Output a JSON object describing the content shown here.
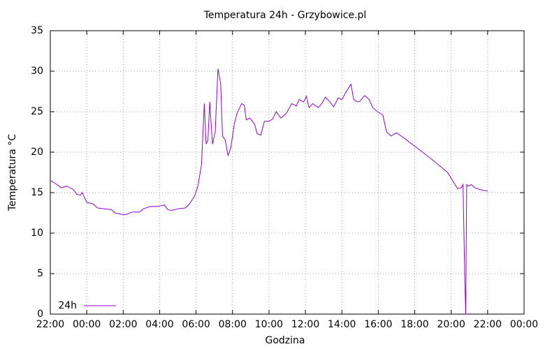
{
  "chart_data": {
    "type": "line",
    "title": "Temperatura 24h - Grzybowice.pl",
    "xlabel": "Godzina",
    "ylabel": "Temperatura  °C",
    "legend": "bottom-left",
    "grid": true,
    "xlim": [
      0,
      26
    ],
    "ylim": [
      0,
      35
    ],
    "yticks": [
      0,
      5,
      10,
      15,
      20,
      25,
      30,
      35
    ],
    "xticks": [
      {
        "value": 0,
        "label": "22:00"
      },
      {
        "value": 2,
        "label": "00:00"
      },
      {
        "value": 4,
        "label": "02:00"
      },
      {
        "value": 6,
        "label": "04:00"
      },
      {
        "value": 8,
        "label": "06:00"
      },
      {
        "value": 10,
        "label": "08:00"
      },
      {
        "value": 12,
        "label": "10:00"
      },
      {
        "value": 14,
        "label": "12:00"
      },
      {
        "value": 16,
        "label": "14:00"
      },
      {
        "value": 18,
        "label": "16:00"
      },
      {
        "value": 20,
        "label": "18:00"
      },
      {
        "value": 22,
        "label": "20:00"
      },
      {
        "value": 24,
        "label": "22:00"
      },
      {
        "value": 26,
        "label": "00:00"
      }
    ],
    "x": [
      0,
      0.3,
      0.6,
      0.9,
      1.25,
      1.45,
      1.65,
      1.75,
      1.85,
      2.0,
      2.35,
      2.6,
      3.0,
      3.35,
      3.55,
      3.95,
      4.15,
      4.5,
      4.9,
      5.1,
      5.5,
      5.85,
      6.15,
      6.25,
      6.45,
      6.65,
      7.0,
      7.4,
      7.6,
      7.9,
      8.1,
      8.3,
      8.45,
      8.55,
      8.65,
      8.75,
      8.9,
      9.05,
      9.2,
      9.35,
      9.45,
      9.6,
      9.75,
      9.9,
      10.1,
      10.25,
      10.5,
      10.65,
      10.75,
      10.95,
      11.2,
      11.35,
      11.55,
      11.75,
      12.0,
      12.2,
      12.4,
      12.65,
      12.95,
      13.25,
      13.5,
      13.65,
      13.9,
      14.05,
      14.2,
      14.4,
      14.7,
      14.9,
      15.1,
      15.35,
      15.55,
      15.8,
      16.0,
      16.25,
      16.5,
      16.65,
      16.85,
      17.0,
      17.25,
      17.5,
      17.7,
      17.95,
      18.25,
      18.45,
      18.7,
      19.0,
      19.5,
      20.25,
      21.0,
      21.8,
      22.35,
      22.55,
      22.65,
      22.75,
      22.8,
      22.85,
      22.95,
      23.1,
      23.3,
      23.7,
      24.0
    ],
    "series": [
      {
        "name": "24h",
        "color": "#9400d3",
        "values": [
          16.5,
          16.1,
          15.6,
          15.8,
          15.4,
          14.8,
          14.7,
          15.0,
          14.5,
          13.8,
          13.6,
          13.1,
          13.0,
          12.9,
          12.5,
          12.3,
          12.3,
          12.6,
          12.6,
          13.0,
          13.3,
          13.3,
          13.4,
          13.5,
          12.9,
          12.8,
          13.0,
          13.1,
          13.5,
          14.5,
          15.8,
          18.5,
          26.0,
          21.0,
          21.5,
          26.2,
          21.0,
          22.5,
          30.3,
          28.5,
          22.0,
          21.5,
          19.6,
          20.5,
          23.5,
          24.8,
          26.0,
          25.8,
          24.0,
          24.2,
          23.5,
          22.3,
          22.1,
          23.8,
          23.8,
          24.1,
          25.0,
          24.2,
          24.8,
          26.0,
          25.7,
          26.5,
          26.2,
          26.9,
          25.5,
          26.0,
          25.5,
          26.0,
          26.8,
          26.2,
          25.6,
          26.7,
          26.5,
          27.5,
          28.4,
          26.5,
          26.2,
          26.3,
          27.0,
          26.5,
          25.5,
          25.0,
          24.6,
          22.5,
          22.0,
          22.4,
          21.6,
          20.3,
          19.0,
          17.5,
          15.5,
          15.6,
          16.0,
          4.0,
          0.0,
          16.0,
          15.8,
          16.0,
          15.6,
          15.3,
          15.2
        ]
      }
    ]
  }
}
